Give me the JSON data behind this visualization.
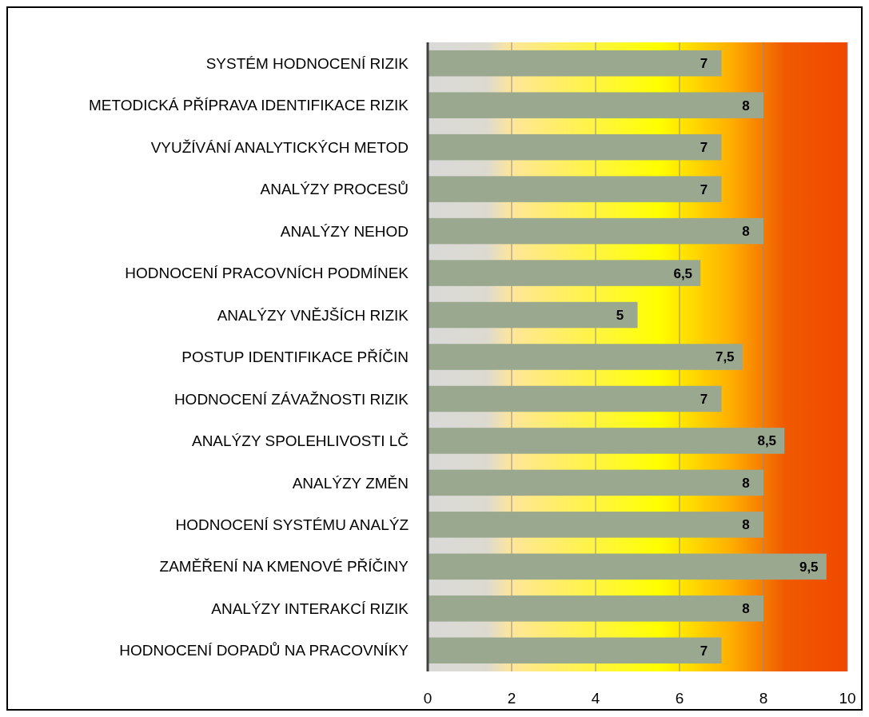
{
  "chart_data": {
    "type": "bar",
    "orientation": "horizontal",
    "categories": [
      "SYSTÉM HODNOCENÍ RIZIK",
      "METODICKÁ PŘÍPRAVA IDENTIFIKACE RIZIK",
      "VYUŽÍVÁNÍ ANALYTICKÝCH METOD",
      "ANALÝZY PROCESŮ",
      "ANALÝZY NEHOD",
      "HODNOCENÍ PRACOVNÍCH PODMÍNEK",
      "ANALÝZY VNĚJŠÍCH RIZIK",
      "POSTUP IDENTIFIKACE PŘÍČIN",
      "HODNOCENÍ ZÁVAŽNOSTI RIZIK",
      "ANALÝZY SPOLEHLIVOSTI LČ",
      "ANALÝZY ZMĚN",
      "HODNOCENÍ SYSTÉMU ANALÝZ",
      "ZAMĚŘENÍ NA KMENOVÉ PŘÍČINY",
      "ANALÝZY INTERAKCÍ RIZIK",
      "HODNOCENÍ DOPADŮ NA PRACOVNÍKY"
    ],
    "values": [
      7,
      8,
      7,
      7,
      8,
      6.5,
      5,
      7.5,
      7,
      8.5,
      8,
      8,
      9.5,
      8,
      7
    ],
    "value_labels": [
      "7",
      "8",
      "7",
      "7",
      "8",
      "6,5",
      "5",
      "7,5",
      "7",
      "8,5",
      "8",
      "8",
      "9,5",
      "8",
      "7"
    ],
    "color": "#9aa88f",
    "xlim": [
      0,
      10
    ],
    "xticks": [
      0,
      2,
      4,
      6,
      8,
      10
    ],
    "grid": "x"
  }
}
